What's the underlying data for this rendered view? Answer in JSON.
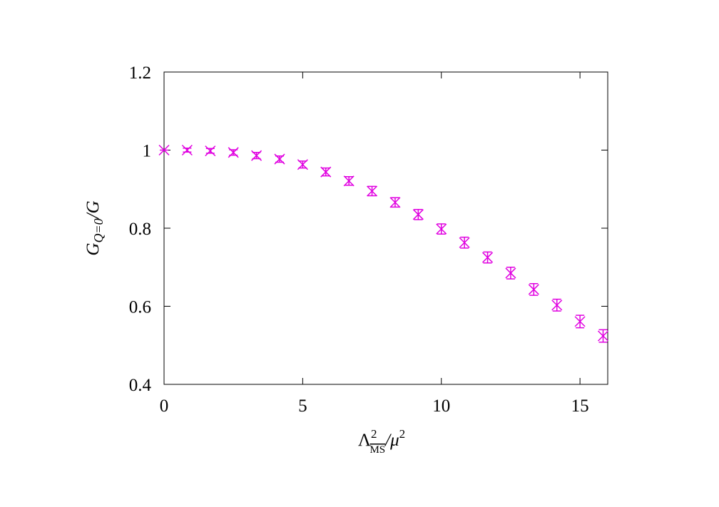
{
  "chart_data": {
    "type": "scatter",
    "xlabel": {
      "parts": [
        "Λ",
        "2",
        "MS",
        "/μ",
        "2"
      ]
    },
    "ylabel": {
      "parts": [
        "G",
        "Q=0",
        "/G"
      ]
    },
    "series": [
      {
        "color": "#e000e0",
        "x": [
          0,
          0.833,
          1.667,
          2.5,
          3.333,
          4.167,
          5,
          5.833,
          6.667,
          7.5,
          8.333,
          9.167,
          10,
          10.833,
          11.667,
          12.5,
          13.333,
          14.167,
          15,
          15.833
        ],
        "values": [
          1.0,
          1.0,
          0.998,
          0.994,
          0.986,
          0.977,
          0.963,
          0.944,
          0.921,
          0.895,
          0.866,
          0.835,
          0.798,
          0.763,
          0.725,
          0.685,
          0.643,
          0.603,
          0.561,
          0.524
        ],
        "errors": [
          0,
          0.005,
          0.006,
          0.007,
          0.008,
          0.008,
          0.009,
          0.01,
          0.011,
          0.012,
          0.012,
          0.013,
          0.013,
          0.014,
          0.014,
          0.015,
          0.015,
          0.015,
          0.016,
          0.016
        ]
      }
    ],
    "xlim": [
      0,
      16
    ],
    "ylim": [
      0.4,
      1.2
    ],
    "xticks": [
      0,
      5,
      10,
      15
    ],
    "yticks": [
      0.4,
      0.6,
      0.8,
      1,
      1.2
    ]
  }
}
